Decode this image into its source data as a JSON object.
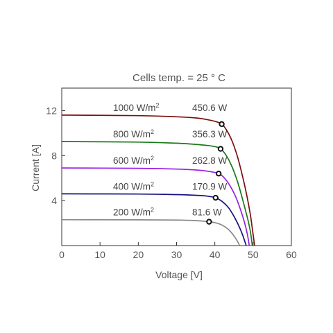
{
  "chart_data": {
    "type": "line",
    "title": "Cells temp. = 25 ° C",
    "xlabel": "Voltage [V]",
    "ylabel": "Current [A]",
    "xlim": [
      0,
      60
    ],
    "ylim": [
      0,
      14
    ],
    "xticks": [
      "0",
      "10",
      "20",
      "30",
      "40",
      "50",
      "60"
    ],
    "yticks": [
      "4",
      "8",
      "12"
    ],
    "xtick_values": [
      0,
      10,
      20,
      30,
      40,
      50,
      60
    ],
    "ytick_values": [
      4,
      8,
      12
    ],
    "grid": false,
    "series": [
      {
        "name": "1000 W/m2",
        "irradiance": "1000 W/m",
        "irradiance_unit_sup": "2",
        "power_label": "450.6 W",
        "color": "#7a1010",
        "isc": 11.6,
        "voc": 50.4,
        "mpp": {
          "v": 41.8,
          "i": 10.8
        },
        "points": [
          [
            0,
            11.6
          ],
          [
            20,
            11.55
          ],
          [
            30,
            11.45
          ],
          [
            35,
            11.35
          ],
          [
            38,
            11.2
          ],
          [
            40,
            11.05
          ],
          [
            41.8,
            10.8
          ],
          [
            43,
            10.3
          ],
          [
            44.5,
            9.3
          ],
          [
            46,
            7.8
          ],
          [
            47.5,
            5.8
          ],
          [
            48.5,
            4.2
          ],
          [
            49.3,
            2.7
          ],
          [
            49.8,
            1.5
          ],
          [
            50.4,
            0
          ]
        ]
      },
      {
        "name": "800 W/m2",
        "irradiance": "800 W/m",
        "irradiance_unit_sup": "2",
        "power_label": "356.3 W",
        "color": "#1a7a1a",
        "isc": 9.25,
        "voc": 49.8,
        "mpp": {
          "v": 41.5,
          "i": 8.6
        },
        "points": [
          [
            0,
            9.25
          ],
          [
            20,
            9.2
          ],
          [
            30,
            9.1
          ],
          [
            35,
            9.0
          ],
          [
            38,
            8.9
          ],
          [
            40,
            8.8
          ],
          [
            41.5,
            8.6
          ],
          [
            43,
            8.0
          ],
          [
            44.5,
            7.0
          ],
          [
            46,
            5.6
          ],
          [
            47.5,
            3.8
          ],
          [
            48.7,
            2.2
          ],
          [
            49.3,
            1.2
          ],
          [
            49.8,
            0
          ]
        ]
      },
      {
        "name": "600 W/m2",
        "irradiance": "600 W/m",
        "irradiance_unit_sup": "2",
        "power_label": "262.8 W",
        "color": "#9a1ee6",
        "isc": 6.9,
        "voc": 49.0,
        "mpp": {
          "v": 41.0,
          "i": 6.4
        },
        "points": [
          [
            0,
            6.9
          ],
          [
            20,
            6.87
          ],
          [
            30,
            6.8
          ],
          [
            35,
            6.72
          ],
          [
            38,
            6.62
          ],
          [
            41,
            6.4
          ],
          [
            42.5,
            6.0
          ],
          [
            44,
            5.3
          ],
          [
            45.5,
            4.3
          ],
          [
            46.8,
            3.1
          ],
          [
            47.8,
            2.0
          ],
          [
            48.5,
            1.0
          ],
          [
            49.0,
            0
          ]
        ]
      },
      {
        "name": "400 W/m2",
        "irradiance": "400 W/m",
        "irradiance_unit_sup": "2",
        "power_label": "170.9 W",
        "color": "#13137a",
        "isc": 4.6,
        "voc": 48.2,
        "mpp": {
          "v": 40.2,
          "i": 4.25
        },
        "points": [
          [
            0,
            4.6
          ],
          [
            20,
            4.58
          ],
          [
            30,
            4.53
          ],
          [
            35,
            4.47
          ],
          [
            38,
            4.4
          ],
          [
            40.2,
            4.25
          ],
          [
            42,
            3.9
          ],
          [
            43.5,
            3.4
          ],
          [
            45,
            2.6
          ],
          [
            46.2,
            1.8
          ],
          [
            47.2,
            1.0
          ],
          [
            48.2,
            0
          ]
        ]
      },
      {
        "name": "200 W/m2",
        "irradiance": "200 W/m",
        "irradiance_unit_sup": "2",
        "power_label": "81.6 W",
        "color": "#888888",
        "isc": 2.3,
        "voc": 46.5,
        "mpp": {
          "v": 38.5,
          "i": 2.12
        },
        "points": [
          [
            0,
            2.3
          ],
          [
            20,
            2.29
          ],
          [
            30,
            2.27
          ],
          [
            35,
            2.22
          ],
          [
            38.5,
            2.12
          ],
          [
            40.5,
            2.0
          ],
          [
            42,
            1.8
          ],
          [
            43.5,
            1.45
          ],
          [
            44.7,
            1.0
          ],
          [
            45.7,
            0.5
          ],
          [
            46.5,
            0
          ]
        ]
      }
    ]
  }
}
